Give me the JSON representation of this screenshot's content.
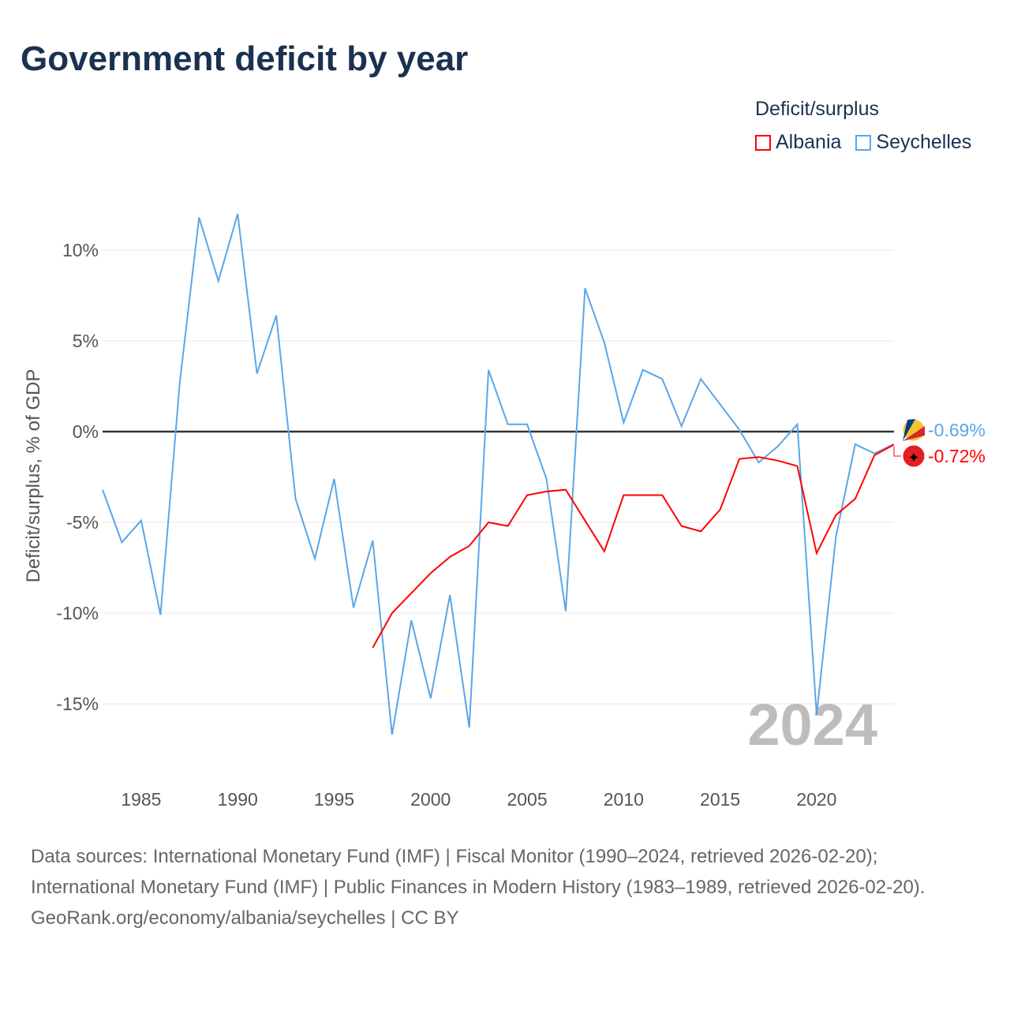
{
  "title": "Government deficit by year",
  "legend": {
    "title": "Deficit/surplus",
    "items": [
      {
        "name": "Albania",
        "color": "#ff0000"
      },
      {
        "name": "Seychelles",
        "color": "#5aa6e8"
      }
    ]
  },
  "footer": {
    "sources": "Data sources: International Monetary Fund (IMF) | Fiscal Monitor (1990–2024, retrieved 2026-02-20); International Monetary Fund (IMF) | Public Finances in Modern History (1983–1989, retrieved 2026-02-20).",
    "credit": "GeoRank.org/economy/albania/seychelles | CC BY"
  },
  "chart_data": {
    "type": "line",
    "title": "Government deficit by year",
    "ylabel": "Deficit/surplus, % of GDP",
    "xlabel": "",
    "xlim": [
      1983,
      2024
    ],
    "ylim": [
      -18,
      14
    ],
    "yticks": [
      10,
      5,
      0,
      -5,
      -10,
      -15
    ],
    "ytick_labels": [
      "10%",
      "5%",
      "0%",
      "-5%",
      "-10%",
      "-15%"
    ],
    "xticks": [
      1985,
      1990,
      1995,
      2000,
      2005,
      2010,
      2015,
      2020
    ],
    "xtick_labels": [
      "1985",
      "1990",
      "1995",
      "2000",
      "2005",
      "2010",
      "2015",
      "2020"
    ],
    "year_watermark": "2024",
    "series": [
      {
        "name": "Seychelles",
        "color": "#5aa6e8",
        "end_label": "-0.69%",
        "start_year": 1983,
        "values": [
          -3.2,
          -6.1,
          -4.9,
          -10.1,
          2.7,
          11.8,
          8.3,
          12.0,
          3.2,
          6.4,
          -3.7,
          -7.0,
          -2.6,
          -9.7,
          -6.0,
          -16.7,
          -10.4,
          -14.7,
          -9.0,
          -16.3,
          3.4,
          0.4,
          0.4,
          -2.6,
          -9.9,
          7.9,
          4.9,
          0.5,
          3.4,
          2.9,
          0.3,
          2.9,
          1.5,
          0.1,
          -1.7,
          -0.8,
          0.4,
          -15.6,
          -5.8,
          -0.7,
          -1.2,
          -0.69
        ]
      },
      {
        "name": "Albania",
        "color": "#ff0000",
        "end_label": "-0.72%",
        "start_year": 1997,
        "values": [
          -11.9,
          -10.0,
          -8.9,
          -7.8,
          -6.9,
          -6.3,
          -5.0,
          -5.2,
          -3.5,
          -3.3,
          -3.2,
          -4.9,
          -6.6,
          -3.5,
          -3.5,
          -3.5,
          -5.2,
          -5.5,
          -4.3,
          -1.5,
          -1.4,
          -1.6,
          -1.9,
          -6.7,
          -4.6,
          -3.7,
          -1.3,
          -0.72
        ]
      }
    ]
  }
}
